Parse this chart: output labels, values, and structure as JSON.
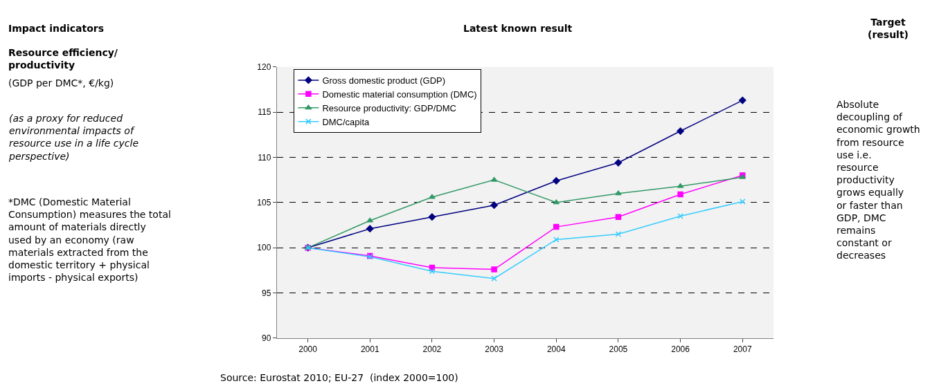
{
  "chart_data": {
    "type": "line",
    "categories": [
      "2000",
      "2001",
      "2002",
      "2003",
      "2004",
      "2005",
      "2006",
      "2007"
    ],
    "series": [
      {
        "name": "Gross domestic product (GDP)",
        "color": "#000080",
        "marker": "diamond",
        "values": [
          100,
          102.1,
          103.4,
          104.7,
          107.4,
          109.4,
          112.9,
          116.3
        ]
      },
      {
        "name": "Domestic material consumption (DMC)",
        "color": "#ff00ff",
        "marker": "square",
        "values": [
          100,
          99.1,
          97.8,
          97.6,
          102.3,
          103.4,
          105.9,
          108.0
        ]
      },
      {
        "name": "Resource productivity: GDP/DMC",
        "color": "#339966",
        "marker": "triangle",
        "values": [
          100,
          103.0,
          105.6,
          107.5,
          105.0,
          106.0,
          106.8,
          107.8
        ]
      },
      {
        "name": "DMC/capita",
        "color": "#33ccff",
        "marker": "cross",
        "values": [
          100,
          99.0,
          97.4,
          96.6,
          100.9,
          101.5,
          103.5,
          105.1
        ]
      }
    ],
    "ylim": [
      90,
      120
    ],
    "yticks": [
      90,
      95,
      100,
      105,
      110,
      115,
      120
    ],
    "grid": "y",
    "line_style": "solid",
    "legend": "top left",
    "annotations": [
      "Impact indicators",
      "Latest known result",
      "Target (result)",
      "Resource efficiency/productivity",
      "(GDP per DMC*, €/kg)",
      "(as a proxy for reduced environmental impacts of resource use in a life cycle perspective)",
      "*DMC (Domestic Material Consumption) measures the total amount of materials directly used by an economy (raw materials extracted from the domestic territory + physical imports - physical exports)",
      "Absolute decoupling of economic growth from resource use i.e. resource productivity grows equally or faster than GDP, DMC remains constant or decreases",
      "Source: Eurostat 2010; EU-27  (index 2000=100)"
    ]
  }
}
